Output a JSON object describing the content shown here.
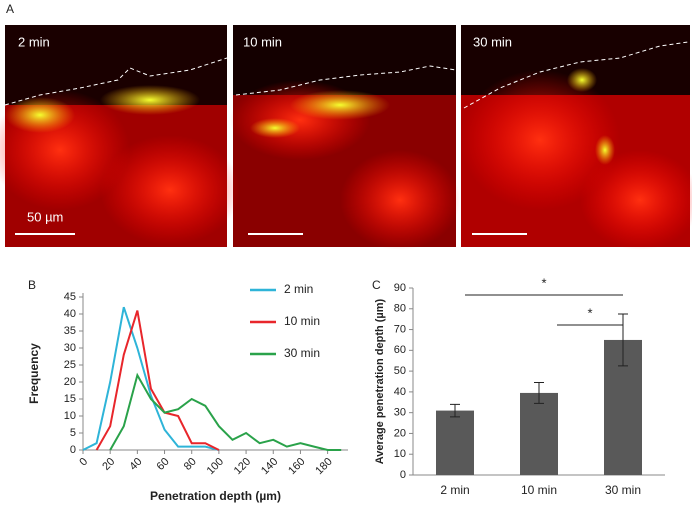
{
  "panels": [
    "A",
    "B",
    "C"
  ],
  "images": [
    {
      "label": "2 min"
    },
    {
      "label": "10 min"
    },
    {
      "label": "30 min"
    }
  ],
  "scale_bar": "50 µm",
  "chart_data": [
    {
      "type": "line",
      "x_label": "Penetration depth (µm)",
      "y_label": "Frequency",
      "x": [
        0,
        10,
        20,
        30,
        40,
        50,
        60,
        70,
        80,
        90,
        100,
        110,
        120,
        130,
        140,
        150,
        160,
        170,
        180,
        190
      ],
      "xlim": [
        0,
        195
      ],
      "xticks": [
        0,
        20,
        40,
        60,
        80,
        100,
        120,
        140,
        160,
        180
      ],
      "ylim": [
        0,
        45
      ],
      "yticks": [
        0,
        5,
        10,
        15,
        20,
        25,
        30,
        35,
        40,
        45
      ],
      "series": [
        {
          "name": "2 min",
          "color": "#2eb4d8",
          "values": [
            0,
            2,
            20,
            42,
            30,
            16,
            6,
            1,
            1,
            1,
            0,
            null,
            null,
            null,
            null,
            null,
            null,
            null,
            null,
            null
          ]
        },
        {
          "name": "10 min",
          "color": "#e8262b",
          "values": [
            null,
            0,
            7,
            28,
            41,
            18,
            11,
            10,
            2,
            2,
            0,
            null,
            null,
            null,
            null,
            null,
            null,
            null,
            null,
            null
          ]
        },
        {
          "name": "30 min",
          "color": "#2aa24a",
          "values": [
            null,
            null,
            0,
            7,
            22,
            15,
            11,
            12,
            15,
            13,
            7,
            3,
            5,
            2,
            3,
            1,
            2,
            1,
            0,
            0
          ]
        }
      ]
    },
    {
      "type": "bar",
      "y_label": "Average penetration depth (µm)",
      "categories": [
        "2 min",
        "10 min",
        "30 min"
      ],
      "values": [
        31,
        39.5,
        65
      ],
      "errors": [
        3,
        5,
        12.5
      ],
      "color": "#595959",
      "ylim": [
        0,
        90
      ],
      "yticks": [
        0,
        10,
        20,
        30,
        40,
        50,
        60,
        70,
        80,
        90
      ],
      "annotations": [
        "*",
        "*"
      ]
    }
  ]
}
